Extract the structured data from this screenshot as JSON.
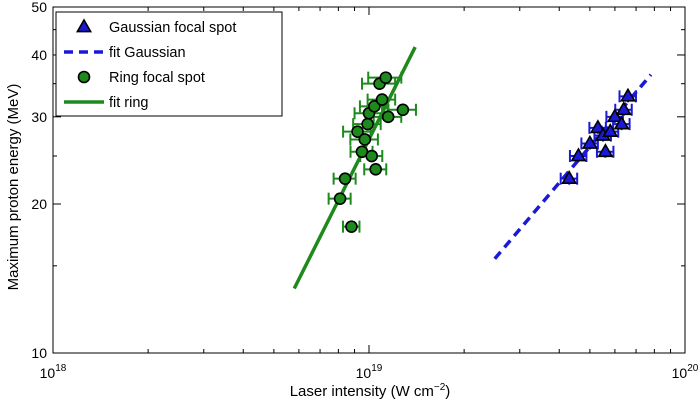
{
  "chart_data": {
    "type": "scatter",
    "x_scale": "log",
    "y_scale": "log",
    "xlim": [
      1e+18,
      1e+20
    ],
    "ylim": [
      10,
      50
    ],
    "xlabel_main": "Laser intensity (W cm",
    "xlabel_sup": "−2",
    "xlabel_close": ")",
    "ylabel": "Maximum proton energy (MeV)",
    "x_ticks": [
      {
        "value": 1e+18,
        "base": "10",
        "exp": "18"
      },
      {
        "value": 1e+19,
        "base": "10",
        "exp": "19"
      },
      {
        "value": 1e+20,
        "base": "10",
        "exp": "20"
      }
    ],
    "y_ticks": [
      {
        "value": 10,
        "label": "10"
      },
      {
        "value": 20,
        "label": "20"
      },
      {
        "value": 30,
        "label": "30"
      },
      {
        "value": 40,
        "label": "40"
      },
      {
        "value": 50,
        "label": "50"
      }
    ],
    "legend_position": "top-left",
    "legend": [
      {
        "label": "Gaussian focal spot",
        "kind": "triangle",
        "color": "#1a1ad6"
      },
      {
        "label": "fit Gaussian",
        "kind": "dashed",
        "color": "#1a1ad6"
      },
      {
        "label": "Ring focal spot",
        "kind": "circle",
        "color": "#1e8a1e"
      },
      {
        "label": "fit ring",
        "kind": "solid",
        "color": "#1e8a1e"
      }
    ],
    "series": [
      {
        "kind": "triangle",
        "color": "#1a1ad6",
        "points": [
          {
            "x": 4.3e+19,
            "y": 22.5,
            "err": 0.06
          },
          {
            "x": 4.6e+19,
            "y": 25.0,
            "err": 0.06
          },
          {
            "x": 5e+19,
            "y": 26.5,
            "err": 0.06
          },
          {
            "x": 5.3e+19,
            "y": 28.5,
            "err": 0.06
          },
          {
            "x": 5.6e+19,
            "y": 25.5,
            "err": 0.06
          },
          {
            "x": 5.5e+19,
            "y": 27.5,
            "err": 0.06
          },
          {
            "x": 5.8e+19,
            "y": 28.0,
            "err": 0.06
          },
          {
            "x": 6e+19,
            "y": 30.0,
            "err": 0.06
          },
          {
            "x": 6.3e+19,
            "y": 29.0,
            "err": 0.06
          },
          {
            "x": 6.4e+19,
            "y": 31.0,
            "err": 0.06
          },
          {
            "x": 6.6e+19,
            "y": 33.0,
            "err": 0.06
          }
        ]
      },
      {
        "kind": "circle",
        "color": "#1e8a1e",
        "points": [
          {
            "x": 8.1e+18,
            "y": 20.5,
            "err": 0.08
          },
          {
            "x": 8.4e+18,
            "y": 22.5,
            "err": 0.08
          },
          {
            "x": 8.8e+18,
            "y": 18.0,
            "err": 0.06
          },
          {
            "x": 9.2e+18,
            "y": 28.0,
            "err": 0.1
          },
          {
            "x": 9.5e+18,
            "y": 25.5,
            "err": 0.08
          },
          {
            "x": 9.7e+18,
            "y": 27.0,
            "err": 0.1
          },
          {
            "x": 9.9e+18,
            "y": 29.0,
            "err": 0.1
          },
          {
            "x": 1e+19,
            "y": 30.5,
            "err": 0.1
          },
          {
            "x": 1.02e+19,
            "y": 25.0,
            "err": 0.08
          },
          {
            "x": 1.04e+19,
            "y": 31.5,
            "err": 0.1
          },
          {
            "x": 1.05e+19,
            "y": 23.5,
            "err": 0.08
          },
          {
            "x": 1.08e+19,
            "y": 35.0,
            "err": 0.12
          },
          {
            "x": 1.1e+19,
            "y": 32.5,
            "err": 0.1
          },
          {
            "x": 1.13e+19,
            "y": 36.0,
            "err": 0.12
          },
          {
            "x": 1.15e+19,
            "y": 30.0,
            "err": 0.1
          },
          {
            "x": 1.28e+19,
            "y": 31.0,
            "err": 0.1
          }
        ]
      }
    ],
    "fits": [
      {
        "style": "dashed",
        "color": "#1a1ad6",
        "x": [
          2.5e+19,
          7.8e+19
        ],
        "y": [
          15.5,
          36.5
        ]
      },
      {
        "style": "solid",
        "color": "#1e8a1e",
        "x": [
          5.8e+18,
          1.4e+19
        ],
        "y": [
          13.5,
          41.5
        ]
      }
    ]
  }
}
